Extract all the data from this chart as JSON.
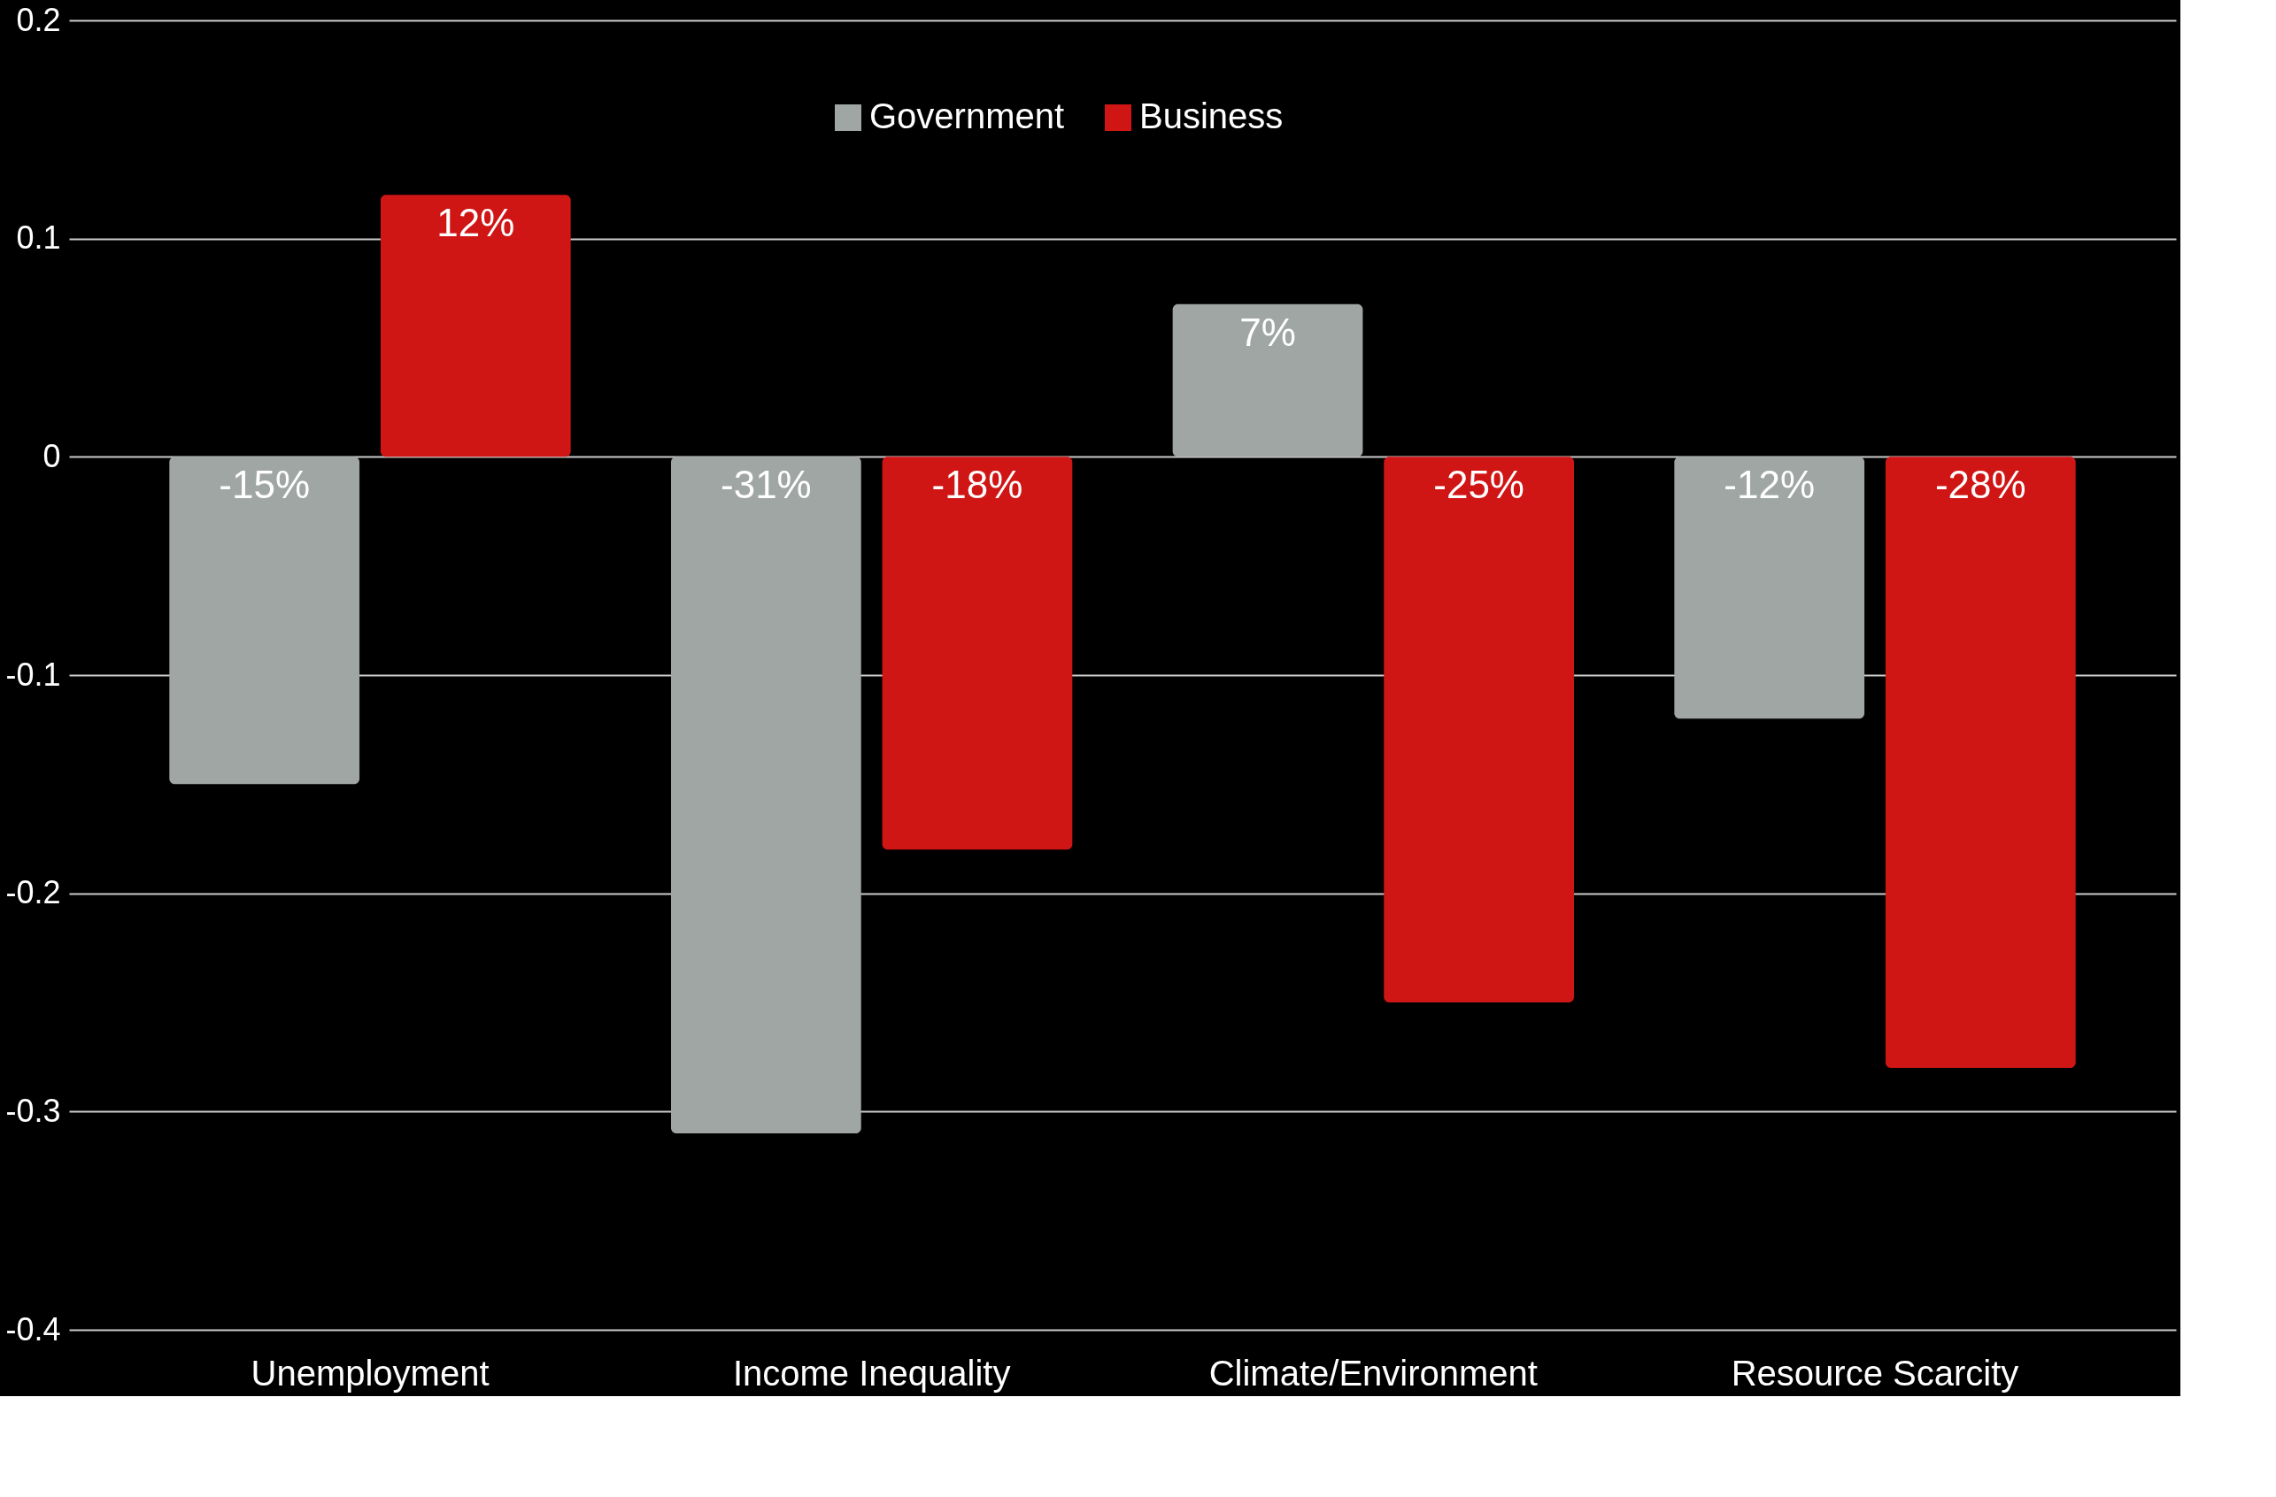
{
  "chart_data": {
    "type": "bar",
    "categories": [
      "Unemployment",
      "Income Inequality",
      "Climate/Environment",
      "Resource Scarcity"
    ],
    "series": [
      {
        "name": "Government",
        "color": "#a0a6a3",
        "values": [
          -0.15,
          -0.31,
          0.07,
          -0.12
        ],
        "value_labels": [
          "-15%",
          "-31%",
          "7%",
          "-12%"
        ]
      },
      {
        "name": "Business",
        "color": "#d01515",
        "values": [
          0.12,
          -0.18,
          -0.25,
          -0.28
        ],
        "value_labels": [
          "12%",
          "-18%",
          "-25%",
          "-28%"
        ]
      }
    ],
    "ylim": [
      -0.4,
      0.2
    ],
    "yticks": [
      -0.4,
      -0.3,
      -0.2,
      -0.1,
      0,
      0.1,
      0.2
    ],
    "grid": "y",
    "legend": "top"
  }
}
